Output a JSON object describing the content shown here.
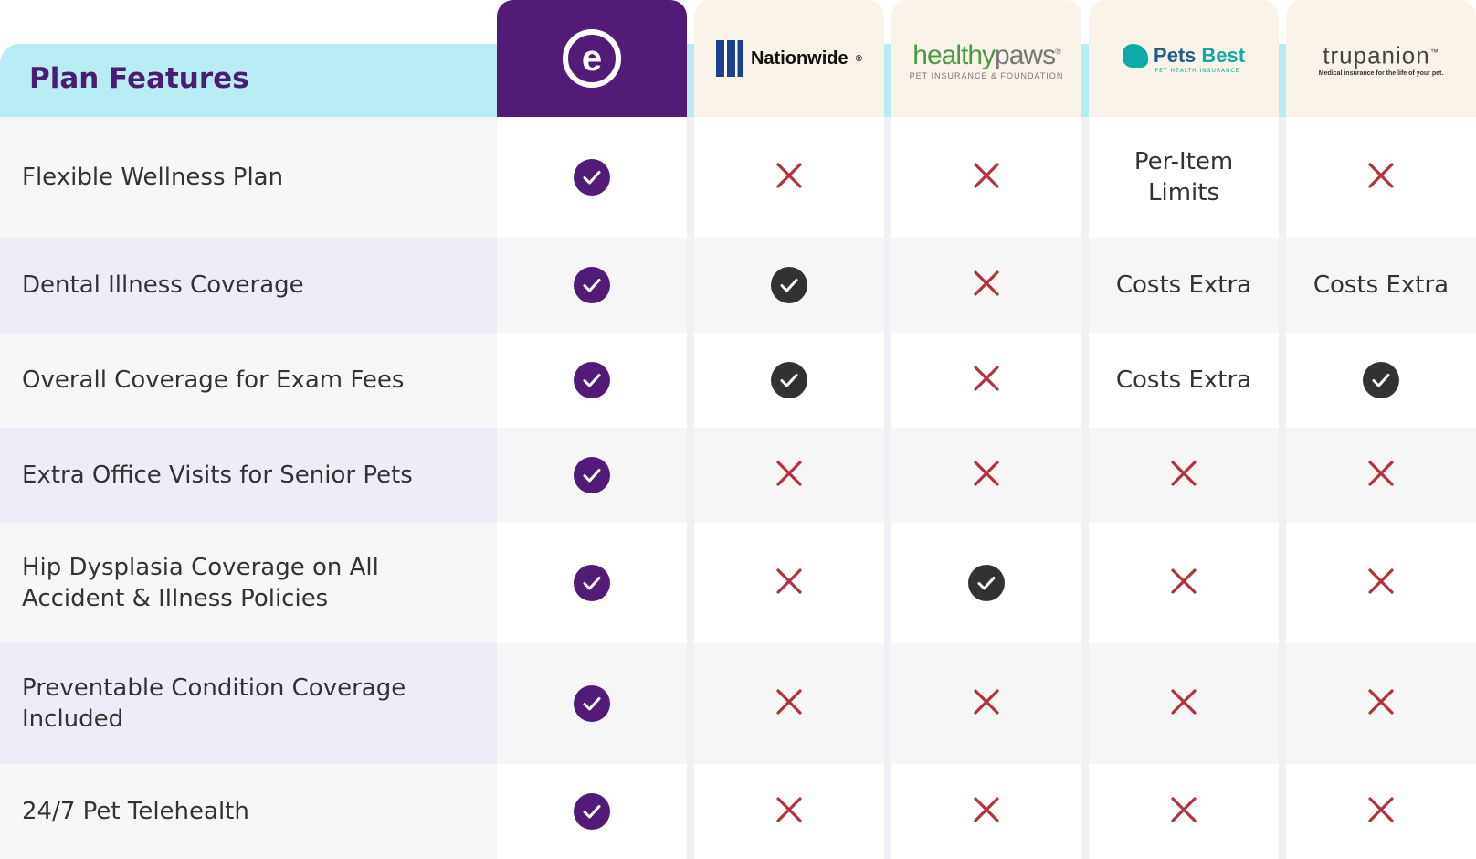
{
  "header": {
    "title": "Plan Features",
    "providers": [
      {
        "key": "embrace",
        "logo_text": "e"
      },
      {
        "key": "nationwide",
        "logo_text": "Nationwide",
        "mark": "®"
      },
      {
        "key": "healthypaws",
        "logo_text_a": "healthy",
        "logo_text_b": "paws",
        "mark": "®",
        "sub": "PET INSURANCE & FOUNDATION"
      },
      {
        "key": "petsbest",
        "logo_text_a": "Pets",
        "logo_text_b": "Best",
        "sub": "PET HEALTH INSURANCE"
      },
      {
        "key": "trupanion",
        "logo_text": "trupanion",
        "mark": "™",
        "sub": "Medical insurance for the life of your pet."
      }
    ]
  },
  "rows": [
    {
      "feature": "Flexible Wellness Plan",
      "values": [
        "check",
        "x",
        "x",
        "Per-Item Limits",
        "x"
      ]
    },
    {
      "feature": "Dental Illness Coverage",
      "values": [
        "check",
        "check",
        "x",
        "Costs Extra",
        "Costs Extra"
      ]
    },
    {
      "feature": "Overall Coverage for Exam Fees",
      "values": [
        "check",
        "check",
        "x",
        "Costs Extra",
        "check"
      ]
    },
    {
      "feature": "Extra Office Visits for Senior Pets",
      "values": [
        "check",
        "x",
        "x",
        "x",
        "x"
      ]
    },
    {
      "feature": "Hip Dysplasia Coverage on All Accident & Illness Policies",
      "values": [
        "check",
        "x",
        "check",
        "x",
        "x"
      ]
    },
    {
      "feature": "Preventable Condition Coverage Included",
      "values": [
        "check",
        "x",
        "x",
        "x",
        "x"
      ]
    },
    {
      "feature": "24/7 Pet Telehealth",
      "values": [
        "check",
        "x",
        "x",
        "x",
        "x"
      ]
    }
  ],
  "icons": {
    "check": "check-circle-icon",
    "x": "x-mark-icon"
  },
  "colors": {
    "brand_purple": "#521b78",
    "header_cyan": "#b7ecf5",
    "x_red": "#b5303a",
    "check_dark": "#323232",
    "competitor_header": "#faf3ea"
  }
}
